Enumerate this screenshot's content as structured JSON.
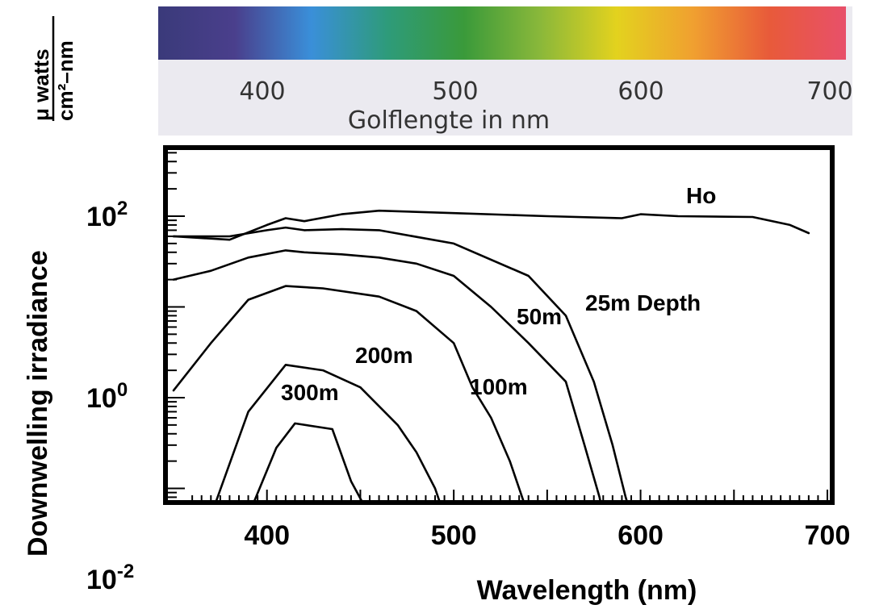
{
  "spectrum": {
    "ticks": [
      "400",
      "500",
      "600",
      "700"
    ],
    "caption": "Golflengte in nm",
    "colors": [
      "#3a3a7a",
      "#4a3f8c",
      "#3a8fd9",
      "#2e9b7a",
      "#3a9a3a",
      "#8ab83a",
      "#e3d21e",
      "#f0a030",
      "#e85a3a",
      "#e8506a"
    ]
  },
  "chart_data": {
    "type": "line",
    "xlabel": "Wavelength (nm)",
    "ylabel": "Downwelling irradiance",
    "yunit_num": "μ watts",
    "yunit_den": "cm²–nm",
    "xticks": [
      "400",
      "500",
      "600",
      "700"
    ],
    "xlim": [
      350,
      700
    ],
    "yticks": [
      {
        "exp": "2",
        "value": 100
      },
      {
        "exp": "0",
        "value": 1
      },
      {
        "exp": "-2",
        "value": 0.01
      }
    ],
    "yscale": "log",
    "ylim": [
      0.02,
      800
    ],
    "series": [
      {
        "name": "Ho",
        "x": [
          350,
          380,
          400,
          410,
          420,
          440,
          460,
          500,
          550,
          590,
          600,
          620,
          660,
          680,
          690
        ],
        "y": [
          60,
          55,
          80,
          95,
          88,
          105,
          115,
          108,
          100,
          95,
          105,
          100,
          98,
          80,
          65
        ]
      },
      {
        "name": "25m Depth",
        "x": [
          350,
          380,
          400,
          410,
          420,
          440,
          460,
          500,
          540,
          560,
          575,
          585,
          592,
          595
        ],
        "y": [
          60,
          60,
          70,
          75,
          70,
          72,
          70,
          50,
          22,
          8,
          1.5,
          0.3,
          0.08,
          0.05
        ]
      },
      {
        "name": "50m",
        "x": [
          350,
          370,
          390,
          410,
          420,
          440,
          460,
          480,
          500,
          520,
          540,
          560,
          570,
          578,
          580
        ],
        "y": [
          20,
          25,
          35,
          42,
          40,
          38,
          35,
          30,
          22,
          10,
          4,
          1.5,
          0.3,
          0.08,
          0.05
        ]
      },
      {
        "name": "100m",
        "x": [
          350,
          370,
          390,
          410,
          430,
          460,
          480,
          500,
          510,
          520,
          530,
          540
        ],
        "y": [
          1.2,
          4,
          12,
          17,
          16,
          13,
          9,
          4,
          1.3,
          0.6,
          0.2,
          0.05
        ]
      },
      {
        "name": "200m",
        "x": [
          370,
          390,
          410,
          430,
          450,
          470,
          480,
          490,
          495
        ],
        "y": [
          0.05,
          0.7,
          2.3,
          2.0,
          1.3,
          0.5,
          0.25,
          0.1,
          0.05
        ]
      },
      {
        "name": "300m",
        "x": [
          390,
          405,
          415,
          435,
          445,
          455
        ],
        "y": [
          0.05,
          0.28,
          0.52,
          0.45,
          0.12,
          0.05
        ]
      }
    ],
    "grid": false,
    "legend": "inline labels"
  }
}
